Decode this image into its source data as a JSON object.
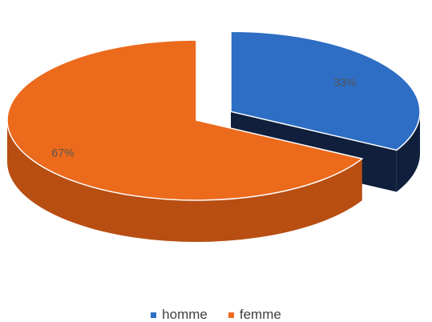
{
  "chart_data": {
    "type": "pie",
    "title": "",
    "style": "3d-exploded",
    "labels": [
      "homme",
      "femme"
    ],
    "values": [
      33,
      67
    ],
    "data_labels": [
      "33%",
      "67%"
    ],
    "colors": [
      "#2e6ec5",
      "#ec6a1c"
    ],
    "side_colors": [
      "#0f1f3c",
      "#b84e12"
    ],
    "legend": {
      "position": "bottom",
      "items": [
        {
          "label": "homme",
          "color": "#2e6ec5"
        },
        {
          "label": "femme",
          "color": "#ec6a1c"
        }
      ]
    }
  }
}
